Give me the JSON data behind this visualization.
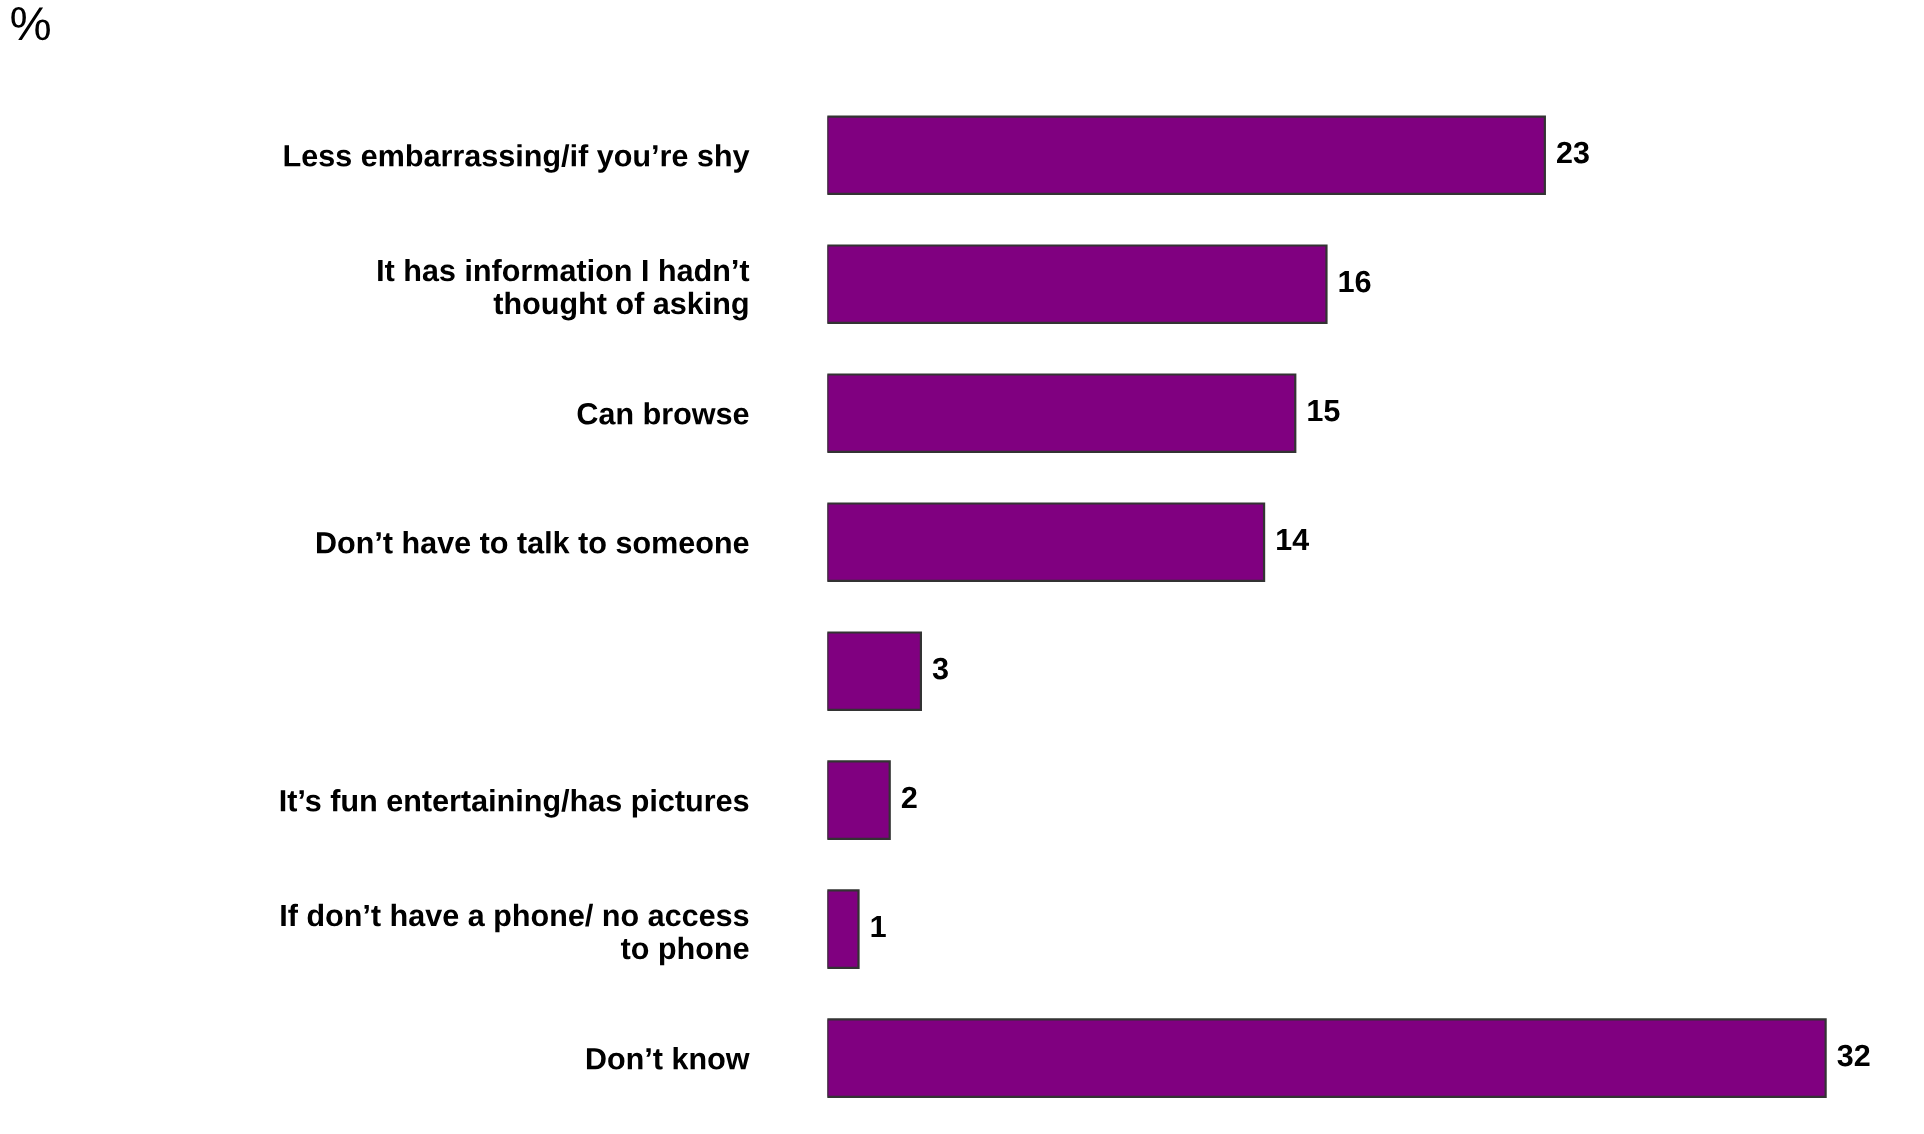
{
  "chart_data": {
    "type": "bar",
    "orientation": "horizontal",
    "title": "%",
    "categories": [
      "Less embarrassing/if you’re shy",
      "It has information I hadn’t\nthought of asking",
      "Can browse",
      "Don’t have to talk to someone",
      null,
      "It’s fun entertaining/has pictures",
      "If don’t have a phone/ no access\nto phone",
      "Don’t know"
    ],
    "values": [
      23,
      16,
      15,
      14,
      3,
      2,
      1,
      32
    ],
    "color": "#800080",
    "data_labels": true,
    "grid": false,
    "legend": false
  }
}
